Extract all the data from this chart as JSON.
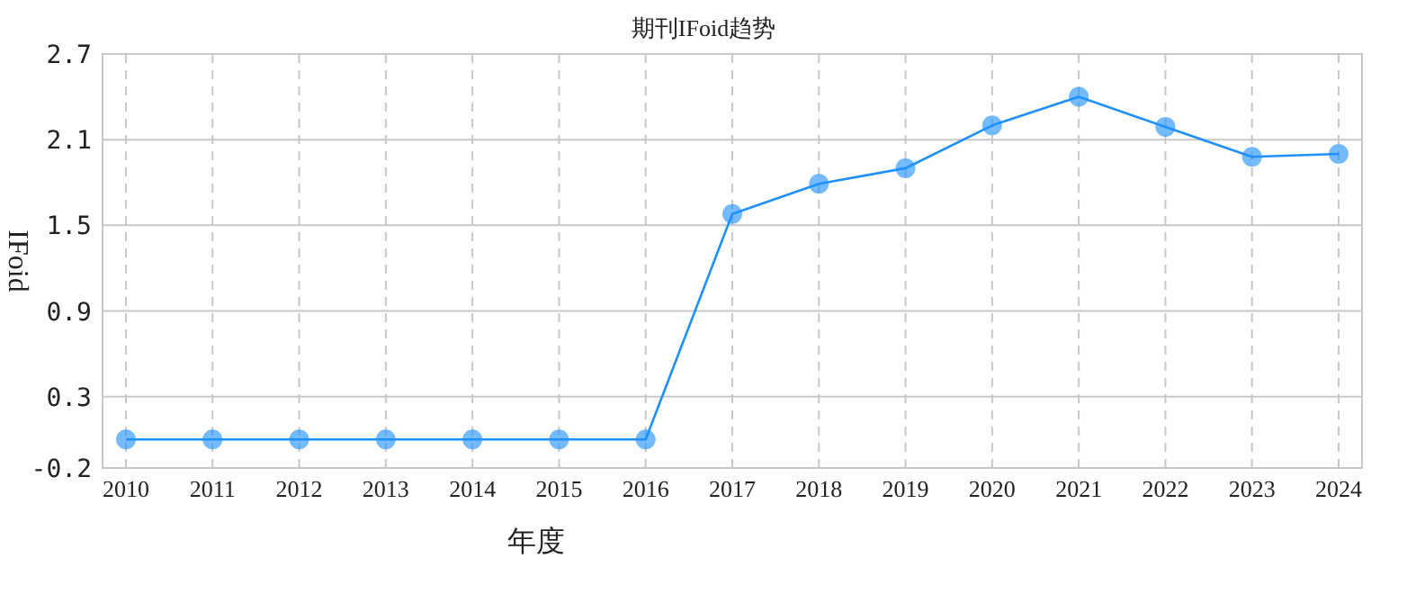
{
  "chart_data": {
    "type": "line",
    "title": "期刊IFoid趋势",
    "xlabel": "年度",
    "ylabel": "IFoid",
    "categories": [
      "2010",
      "2011",
      "2012",
      "2013",
      "2014",
      "2015",
      "2016",
      "2017",
      "2018",
      "2019",
      "2020",
      "2021",
      "2022",
      "2023",
      "2024"
    ],
    "series": [
      {
        "color": "#1e90ff",
        "values": [
          0,
          0,
          0,
          0,
          0,
          0,
          0,
          1.58,
          1.79,
          1.9,
          2.2,
          2.4,
          2.19,
          1.98,
          2.0
        ]
      }
    ],
    "ylim": [
      -0.2,
      2.7
    ],
    "yticks": [
      -0.2,
      0.3,
      0.9,
      1.5,
      2.1,
      2.7
    ],
    "grid": true,
    "marker": "circle",
    "line_style": "solid"
  }
}
